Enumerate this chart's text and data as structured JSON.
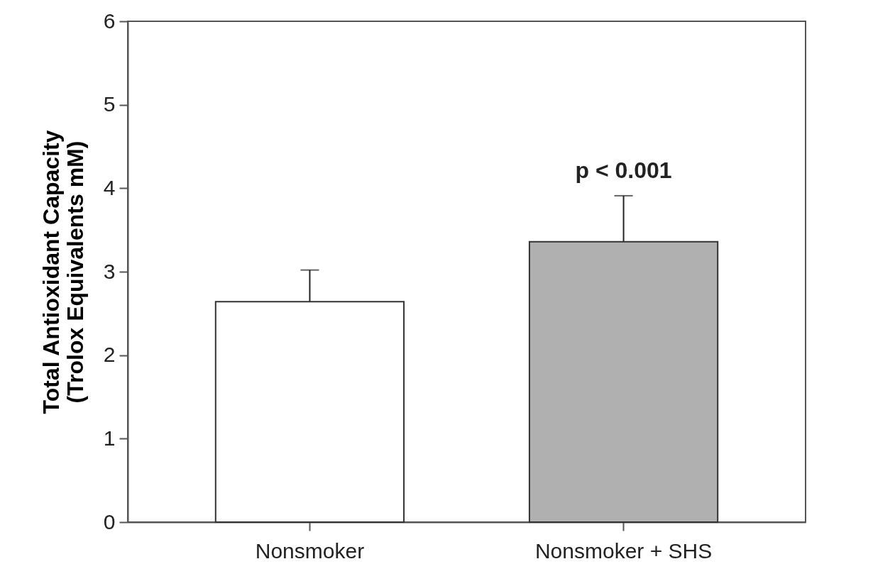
{
  "chart_data": {
    "type": "bar",
    "ylabel": "Total Antioxidant Capacity\n(Trolox Equivalents mM)",
    "categories": [
      "Nonsmoker",
      "Nonsmoker + SHS"
    ],
    "values": [
      2.64,
      3.36
    ],
    "colors": [
      "#ffffff",
      "#b0b0b0"
    ],
    "errors": [
      0.38,
      0.55
    ],
    "ylim": [
      0,
      6
    ],
    "yticks": [
      0,
      1,
      2,
      3,
      4,
      5,
      6
    ],
    "annotations": [
      "p < 0.001"
    ]
  }
}
